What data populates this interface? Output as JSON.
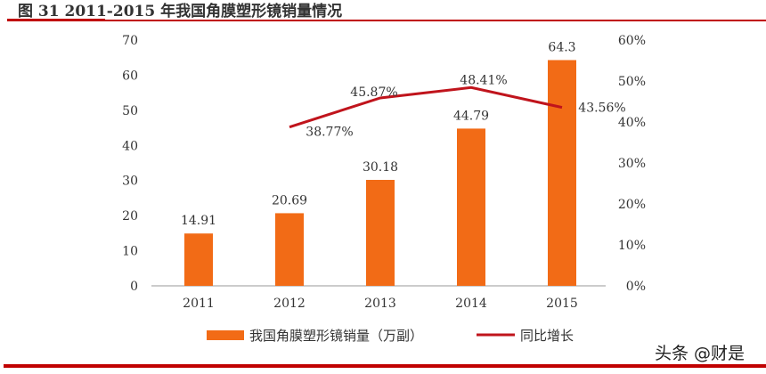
{
  "title": "图 31 2011-2015 年我国角膜塑形镜销量情况",
  "watermark": "头条 @财是",
  "colors": {
    "bar": "#f26b16",
    "line": "#c0141c",
    "rule": "#c00000"
  },
  "chart_data": {
    "type": "bar+line",
    "categories": [
      "2011",
      "2012",
      "2013",
      "2014",
      "2015"
    ],
    "series": [
      {
        "name": "我国角膜塑形镜销量（万副）",
        "type": "bar",
        "axis": "left",
        "values": [
          14.91,
          20.69,
          30.18,
          44.79,
          64.3
        ],
        "labels": [
          "14.91",
          "20.69",
          "30.18",
          "44.79",
          "64.3"
        ]
      },
      {
        "name": "同比增长",
        "type": "line",
        "axis": "right",
        "values": [
          null,
          38.77,
          45.87,
          48.41,
          43.56
        ],
        "labels": [
          "",
          "38.77%",
          "45.87%",
          "48.41%",
          "43.56%"
        ]
      }
    ],
    "ylim": [
      0,
      70
    ],
    "yticks": [
      "0",
      "10",
      "20",
      "30",
      "40",
      "50",
      "60",
      "70"
    ],
    "y2lim": [
      0,
      60
    ],
    "y2ticks": [
      "0%",
      "10%",
      "20%",
      "30%",
      "40%",
      "50%",
      "60%"
    ],
    "grid": false,
    "legend": "bottom"
  }
}
